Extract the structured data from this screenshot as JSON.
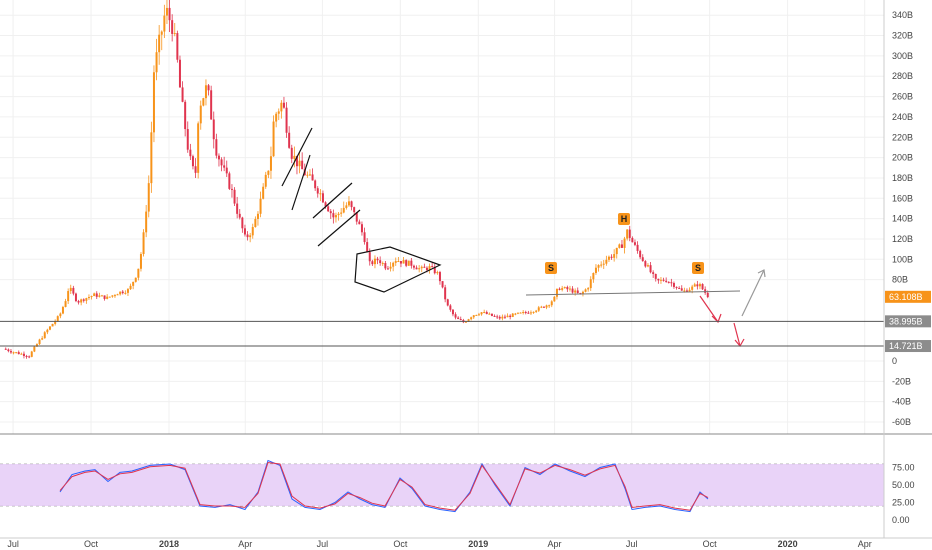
{
  "chart_data": [
    {
      "type": "candlestick",
      "title": "",
      "ylim": [
        -70,
        355
      ],
      "yunit": "B",
      "y_ticks": [
        "340B",
        "320B",
        "300B",
        "280B",
        "260B",
        "240B",
        "220B",
        "200B",
        "180B",
        "160B",
        "140B",
        "120B",
        "100B",
        "80B",
        "0",
        "-20B",
        "-40B",
        "-60B"
      ],
      "x_ticks": [
        "Jul",
        "Oct",
        "2018",
        "Apr",
        "Jul",
        "Oct",
        "2019",
        "Apr",
        "Jul",
        "Oct",
        "2020",
        "Apr"
      ],
      "close_path": [
        [
          "2017-06-20",
          12
        ],
        [
          "2017-07-01",
          9
        ],
        [
          "2017-07-20",
          5
        ],
        [
          "2017-08-01",
          20
        ],
        [
          "2017-08-10",
          30
        ],
        [
          "2017-08-25",
          45
        ],
        [
          "2017-09-01",
          60
        ],
        [
          "2017-09-05",
          73
        ],
        [
          "2017-09-15",
          58
        ],
        [
          "2017-09-25",
          62
        ],
        [
          "2017-10-05",
          65
        ],
        [
          "2017-10-20",
          62
        ],
        [
          "2017-11-01",
          67
        ],
        [
          "2017-11-15",
          70
        ],
        [
          "2017-11-25",
          88
        ],
        [
          "2017-12-01",
          115
        ],
        [
          "2017-12-05",
          150
        ],
        [
          "2017-12-10",
          190
        ],
        [
          "2017-12-13",
          280
        ],
        [
          "2017-12-20",
          310
        ],
        [
          "2017-12-28",
          345
        ],
        [
          "2018-01-05",
          330
        ],
        [
          "2018-01-10",
          300
        ],
        [
          "2018-01-15",
          260
        ],
        [
          "2018-01-20",
          230
        ],
        [
          "2018-01-25",
          200
        ],
        [
          "2018-02-01",
          180
        ],
        [
          "2018-02-05",
          250
        ],
        [
          "2018-02-15",
          270
        ],
        [
          "2018-02-25",
          210
        ],
        [
          "2018-03-05",
          190
        ],
        [
          "2018-03-15",
          170
        ],
        [
          "2018-03-25",
          140
        ],
        [
          "2018-04-01",
          120
        ],
        [
          "2018-04-10",
          130
        ],
        [
          "2018-04-20",
          160
        ],
        [
          "2018-05-01",
          200
        ],
        [
          "2018-05-05",
          240
        ],
        [
          "2018-05-15",
          255
        ],
        [
          "2018-05-25",
          205
        ],
        [
          "2018-06-05",
          190
        ],
        [
          "2018-06-15",
          180
        ],
        [
          "2018-06-25",
          170
        ],
        [
          "2018-07-05",
          155
        ],
        [
          "2018-07-15",
          140
        ],
        [
          "2018-07-25",
          150
        ],
        [
          "2018-08-01",
          155
        ],
        [
          "2018-08-10",
          140
        ],
        [
          "2018-08-20",
          120
        ],
        [
          "2018-08-25",
          95
        ],
        [
          "2018-09-05",
          100
        ],
        [
          "2018-09-15",
          92
        ],
        [
          "2018-09-25",
          100
        ],
        [
          "2018-10-05",
          97
        ],
        [
          "2018-10-15",
          95
        ],
        [
          "2018-10-25",
          90
        ],
        [
          "2018-11-05",
          92
        ],
        [
          "2018-11-15",
          85
        ],
        [
          "2018-11-20",
          70
        ],
        [
          "2018-11-25",
          55
        ],
        [
          "2018-12-05",
          42
        ],
        [
          "2018-12-15",
          38
        ],
        [
          "2018-12-25",
          45
        ],
        [
          "2019-01-05",
          48
        ],
        [
          "2019-01-15",
          45
        ],
        [
          "2019-01-25",
          42
        ],
        [
          "2019-02-05",
          44
        ],
        [
          "2019-02-15",
          46
        ],
        [
          "2019-03-01",
          48
        ],
        [
          "2019-03-15",
          52
        ],
        [
          "2019-03-25",
          56
        ],
        [
          "2019-04-01",
          62
        ],
        [
          "2019-04-05",
          72
        ],
        [
          "2019-04-20",
          70
        ],
        [
          "2019-05-01",
          65
        ],
        [
          "2019-05-10",
          72
        ],
        [
          "2019-05-20",
          92
        ],
        [
          "2019-06-01",
          100
        ],
        [
          "2019-06-10",
          105
        ],
        [
          "2019-06-20",
          115
        ],
        [
          "2019-06-26",
          128
        ],
        [
          "2019-07-01",
          118
        ],
        [
          "2019-07-10",
          105
        ],
        [
          "2019-07-20",
          92
        ],
        [
          "2019-07-30",
          78
        ],
        [
          "2019-08-10",
          80
        ],
        [
          "2019-08-20",
          75
        ],
        [
          "2019-08-30",
          68
        ],
        [
          "2019-09-10",
          72
        ],
        [
          "2019-09-18",
          76
        ],
        [
          "2019-09-25",
          68
        ],
        [
          "2019-09-30",
          63
        ]
      ],
      "levels": [
        {
          "label": "38.995B",
          "value": 38.995
        },
        {
          "label": "14.721B",
          "value": 14.721
        }
      ],
      "current_price": {
        "label": "63.108B",
        "value": 63.108
      },
      "annotations": [
        "S",
        "H",
        "S"
      ],
      "colors": {
        "up": "#f7931a",
        "down": "#e0344e",
        "price_tag": "#f7931a",
        "level_tag": "#8c8c8c"
      }
    },
    {
      "type": "line",
      "title": "",
      "ylim": [
        0,
        100
      ],
      "y_ticks": [
        "75.00",
        "50.00",
        "25.00",
        "0.00"
      ],
      "band": [
        20,
        80
      ],
      "series": [
        {
          "color": "#2962ff",
          "values": [
            [
              60,
              40
            ],
            [
              72,
              65
            ],
            [
              85,
              70
            ],
            [
              95,
              72
            ],
            [
              108,
              55
            ],
            [
              120,
              68
            ],
            [
              132,
              70
            ],
            [
              150,
              78
            ],
            [
              170,
              80
            ],
            [
              185,
              72
            ],
            [
              200,
              20
            ],
            [
              215,
              18
            ],
            [
              230,
              22
            ],
            [
              245,
              15
            ],
            [
              258,
              40
            ],
            [
              268,
              85
            ],
            [
              280,
              78
            ],
            [
              292,
              30
            ],
            [
              305,
              18
            ],
            [
              320,
              15
            ],
            [
              335,
              25
            ],
            [
              348,
              40
            ],
            [
              360,
              30
            ],
            [
              372,
              22
            ],
            [
              385,
              18
            ],
            [
              400,
              60
            ],
            [
              412,
              45
            ],
            [
              425,
              20
            ],
            [
              440,
              15
            ],
            [
              455,
              12
            ],
            [
              470,
              40
            ],
            [
              482,
              80
            ],
            [
              495,
              50
            ],
            [
              510,
              20
            ],
            [
              525,
              75
            ],
            [
              540,
              65
            ],
            [
              555,
              80
            ],
            [
              570,
              70
            ],
            [
              585,
              62
            ],
            [
              600,
              75
            ],
            [
              615,
              80
            ],
            [
              625,
              45
            ],
            [
              632,
              15
            ],
            [
              645,
              18
            ],
            [
              660,
              20
            ],
            [
              675,
              15
            ],
            [
              690,
              12
            ],
            [
              700,
              40
            ],
            [
              708,
              30
            ]
          ]
        },
        {
          "color": "#e0344e",
          "values": [
            [
              60,
              42
            ],
            [
              72,
              62
            ],
            [
              85,
              68
            ],
            [
              95,
              70
            ],
            [
              108,
              58
            ],
            [
              120,
              66
            ],
            [
              132,
              68
            ],
            [
              150,
              76
            ],
            [
              170,
              78
            ],
            [
              185,
              74
            ],
            [
              200,
              22
            ],
            [
              215,
              20
            ],
            [
              230,
              20
            ],
            [
              245,
              18
            ],
            [
              258,
              38
            ],
            [
              268,
              82
            ],
            [
              280,
              80
            ],
            [
              292,
              34
            ],
            [
              305,
              20
            ],
            [
              320,
              17
            ],
            [
              335,
              23
            ],
            [
              348,
              38
            ],
            [
              360,
              32
            ],
            [
              372,
              24
            ],
            [
              385,
              20
            ],
            [
              400,
              58
            ],
            [
              412,
              47
            ],
            [
              425,
              22
            ],
            [
              440,
              17
            ],
            [
              455,
              14
            ],
            [
              470,
              38
            ],
            [
              482,
              78
            ],
            [
              495,
              52
            ],
            [
              510,
              22
            ],
            [
              525,
              73
            ],
            [
              540,
              67
            ],
            [
              555,
              78
            ],
            [
              570,
              72
            ],
            [
              585,
              64
            ],
            [
              600,
              73
            ],
            [
              615,
              78
            ],
            [
              625,
              48
            ],
            [
              632,
              18
            ],
            [
              645,
              20
            ],
            [
              660,
              22
            ],
            [
              675,
              17
            ],
            [
              690,
              14
            ],
            [
              700,
              38
            ],
            [
              708,
              32
            ]
          ]
        }
      ]
    }
  ]
}
